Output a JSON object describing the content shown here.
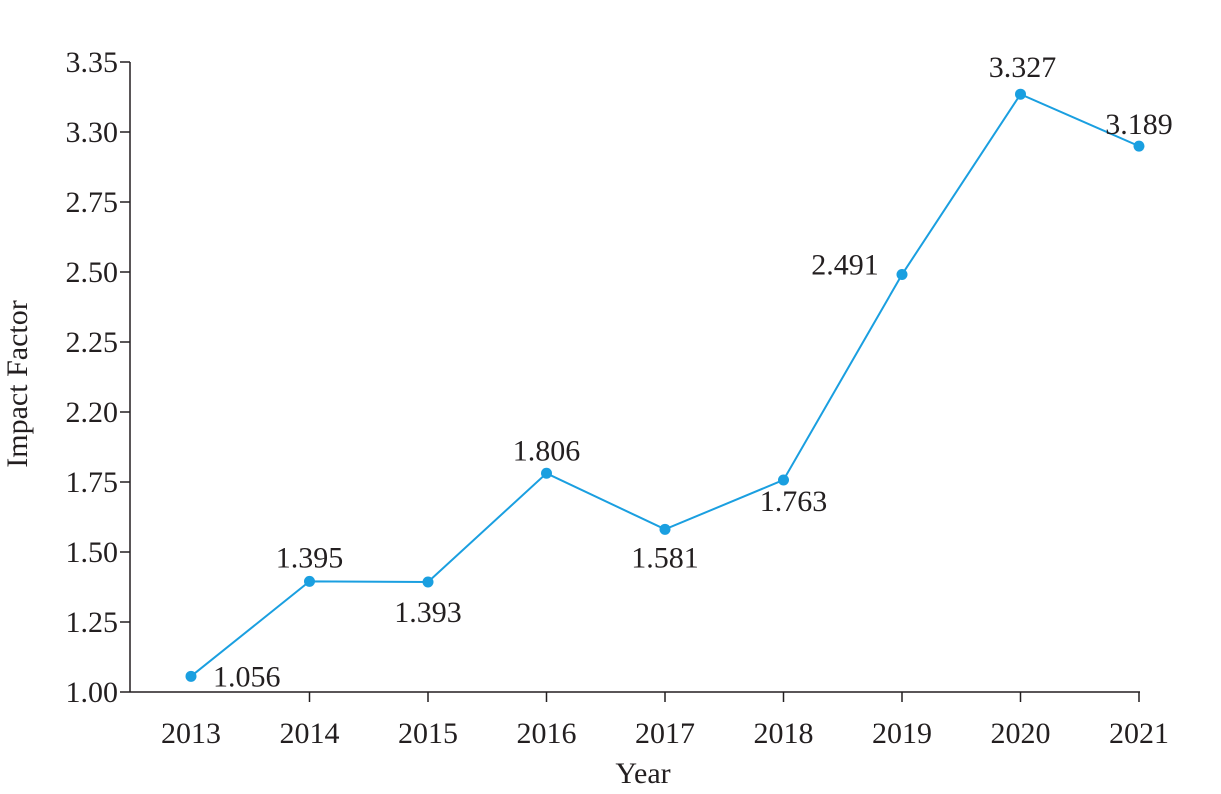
{
  "chart_data": {
    "type": "line",
    "title": "",
    "xlabel": "Year",
    "ylabel": "Impact Factor",
    "x": [
      "2013",
      "2014",
      "2015",
      "2016",
      "2017",
      "2018",
      "2019",
      "2020",
      "2021"
    ],
    "series": [
      {
        "values": [
          1.056,
          1.395,
          1.393,
          1.806,
          1.581,
          1.763,
          2.491,
          3.327,
          3.189
        ]
      }
    ],
    "data_labels": [
      "1.056",
      "1.395",
      "1.393",
      "1.806",
      "1.581",
      "1.763",
      "2.491",
      "3.327",
      "3.189"
    ],
    "y_ticks": [
      "1.00",
      "1.25",
      "1.50",
      "1.75",
      "2.20",
      "2.25",
      "2.50",
      "2.75",
      "3.30",
      "3.35"
    ],
    "ylim": [
      1.0,
      3.35
    ],
    "grid": false,
    "legend": "none",
    "colors": {
      "series": "#1a9fe0",
      "axis": "#231f20",
      "text": "#231f20"
    }
  }
}
